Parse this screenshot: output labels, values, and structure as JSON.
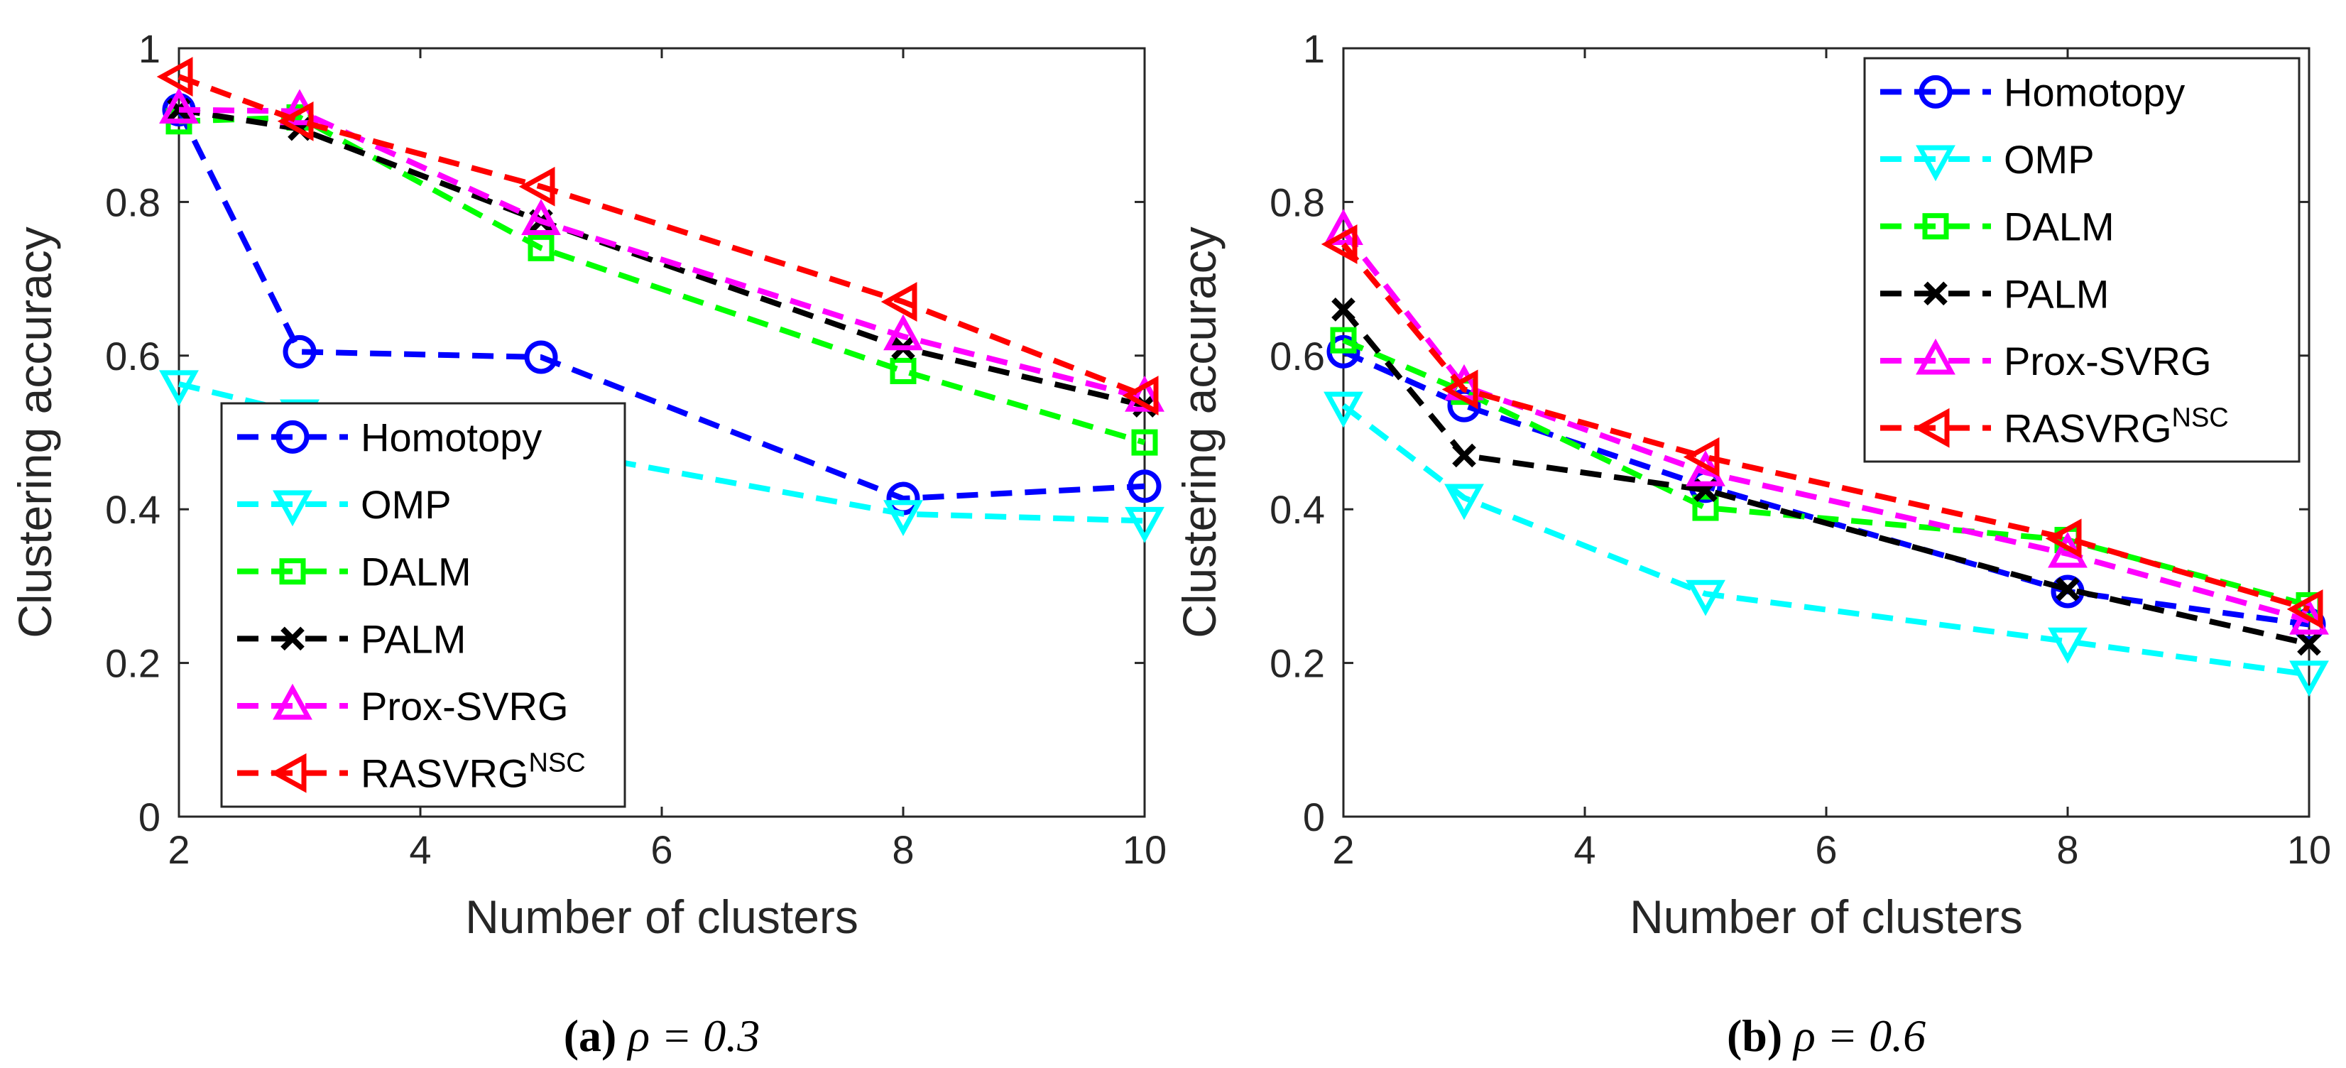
{
  "chart_data": [
    {
      "type": "line",
      "caption": {
        "label": "(a)",
        "text": "ρ = 0.3"
      },
      "xlabel": "Number of clusters",
      "ylabel": "Clustering accuracy",
      "xlim": [
        2,
        10
      ],
      "ylim": [
        0,
        1
      ],
      "xticks": [
        "2",
        "4",
        "6",
        "8",
        "10"
      ],
      "yticks": [
        "0",
        "0.2",
        "0.4",
        "0.6",
        "0.8",
        "1"
      ],
      "grid": false,
      "legend_position": "bottom-left",
      "x": [
        2,
        3,
        5,
        8,
        10
      ],
      "series": [
        {
          "name": "Homotopy",
          "color": "#0000ff",
          "marker": "circle",
          "values": [
            0.92,
            0.605,
            0.598,
            0.414,
            0.43
          ]
        },
        {
          "name": "OMP",
          "color": "#00ffff",
          "marker": "triangle-down",
          "values": [
            0.563,
            0.525,
            0.48,
            0.394,
            0.385
          ]
        },
        {
          "name": "DALM",
          "color": "#00ff00",
          "marker": "square",
          "values": [
            0.905,
            0.91,
            0.74,
            0.58,
            0.487
          ]
        },
        {
          "name": "PALM",
          "color": "#000000",
          "marker": "x",
          "values": [
            0.92,
            0.895,
            0.775,
            0.61,
            0.535
          ]
        },
        {
          "name": "Prox-SVRG",
          "color": "#ff00ff",
          "marker": "triangle-up",
          "values": [
            0.92,
            0.918,
            0.775,
            0.625,
            0.545
          ]
        },
        {
          "name": "RASVRG",
          "name_sup": "NSC",
          "color": "#ff0000",
          "marker": "triangle-left",
          "values": [
            0.963,
            0.905,
            0.82,
            0.67,
            0.548
          ]
        }
      ]
    },
    {
      "type": "line",
      "caption": {
        "label": "(b)",
        "text": "ρ = 0.6"
      },
      "xlabel": "Number of clusters",
      "ylabel": "Clustering accuracy",
      "xlim": [
        2,
        10
      ],
      "ylim": [
        0,
        1
      ],
      "xticks": [
        "2",
        "4",
        "6",
        "8",
        "10"
      ],
      "yticks": [
        "0",
        "0.2",
        "0.4",
        "0.6",
        "0.8",
        "1"
      ],
      "grid": false,
      "legend_position": "top-right",
      "x": [
        2,
        3,
        5,
        8,
        10
      ],
      "series": [
        {
          "name": "Homotopy",
          "color": "#0000ff",
          "marker": "circle",
          "values": [
            0.605,
            0.535,
            0.43,
            0.293,
            0.25
          ]
        },
        {
          "name": "OMP",
          "color": "#00ffff",
          "marker": "triangle-down",
          "values": [
            0.535,
            0.415,
            0.29,
            0.228,
            0.185
          ]
        },
        {
          "name": "DALM",
          "color": "#00ff00",
          "marker": "square",
          "values": [
            0.62,
            0.553,
            0.402,
            0.36,
            0.275
          ]
        },
        {
          "name": "PALM",
          "color": "#000000",
          "marker": "x",
          "values": [
            0.66,
            0.47,
            0.425,
            0.296,
            0.225
          ]
        },
        {
          "name": "Prox-SVRG",
          "color": "#ff00ff",
          "marker": "triangle-up",
          "values": [
            0.762,
            0.56,
            0.448,
            0.342,
            0.255
          ]
        },
        {
          "name": "RASVRG",
          "name_sup": "NSC",
          "color": "#ff0000",
          "marker": "triangle-left",
          "values": [
            0.745,
            0.556,
            0.468,
            0.362,
            0.27
          ]
        }
      ]
    }
  ]
}
